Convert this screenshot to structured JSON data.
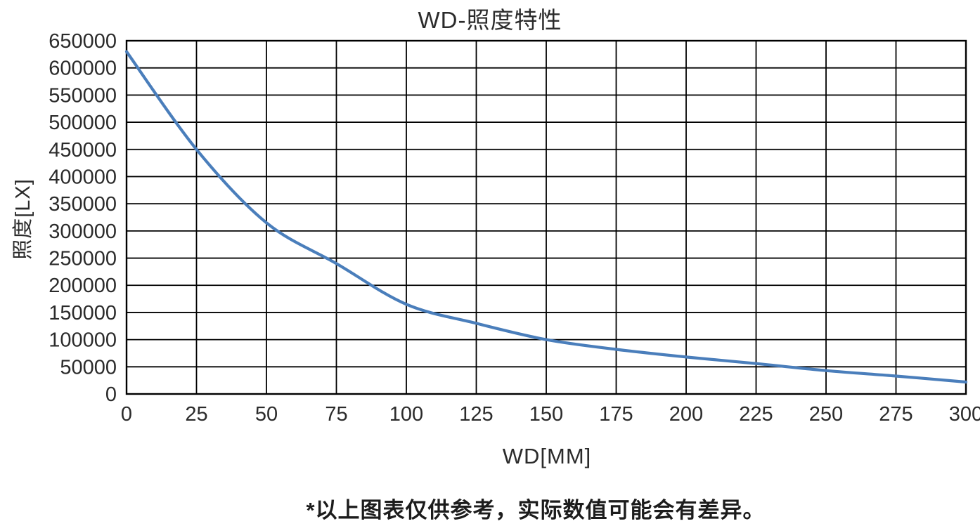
{
  "chart_data": {
    "type": "line",
    "title": "WD-照度特性",
    "xlabel": "WD[MM]",
    "ylabel": "照度[LX]",
    "x": [
      0,
      25,
      50,
      75,
      100,
      125,
      150,
      175,
      200,
      225,
      250,
      275,
      300
    ],
    "series": [
      {
        "name": "照度",
        "values": [
          630000,
          450000,
          315000,
          240000,
          165000,
          130000,
          100000,
          82000,
          68000,
          56000,
          43000,
          33000,
          22000
        ]
      }
    ],
    "xlim": [
      0,
      300
    ],
    "ylim": [
      0,
      650000
    ],
    "x_tick_step": 25,
    "y_tick_step": 50000,
    "grid": true,
    "legend": "none",
    "line_color": "#4a7ebb",
    "footnote": "*以上图表仅供参考，实际数值可能会有差异。"
  }
}
